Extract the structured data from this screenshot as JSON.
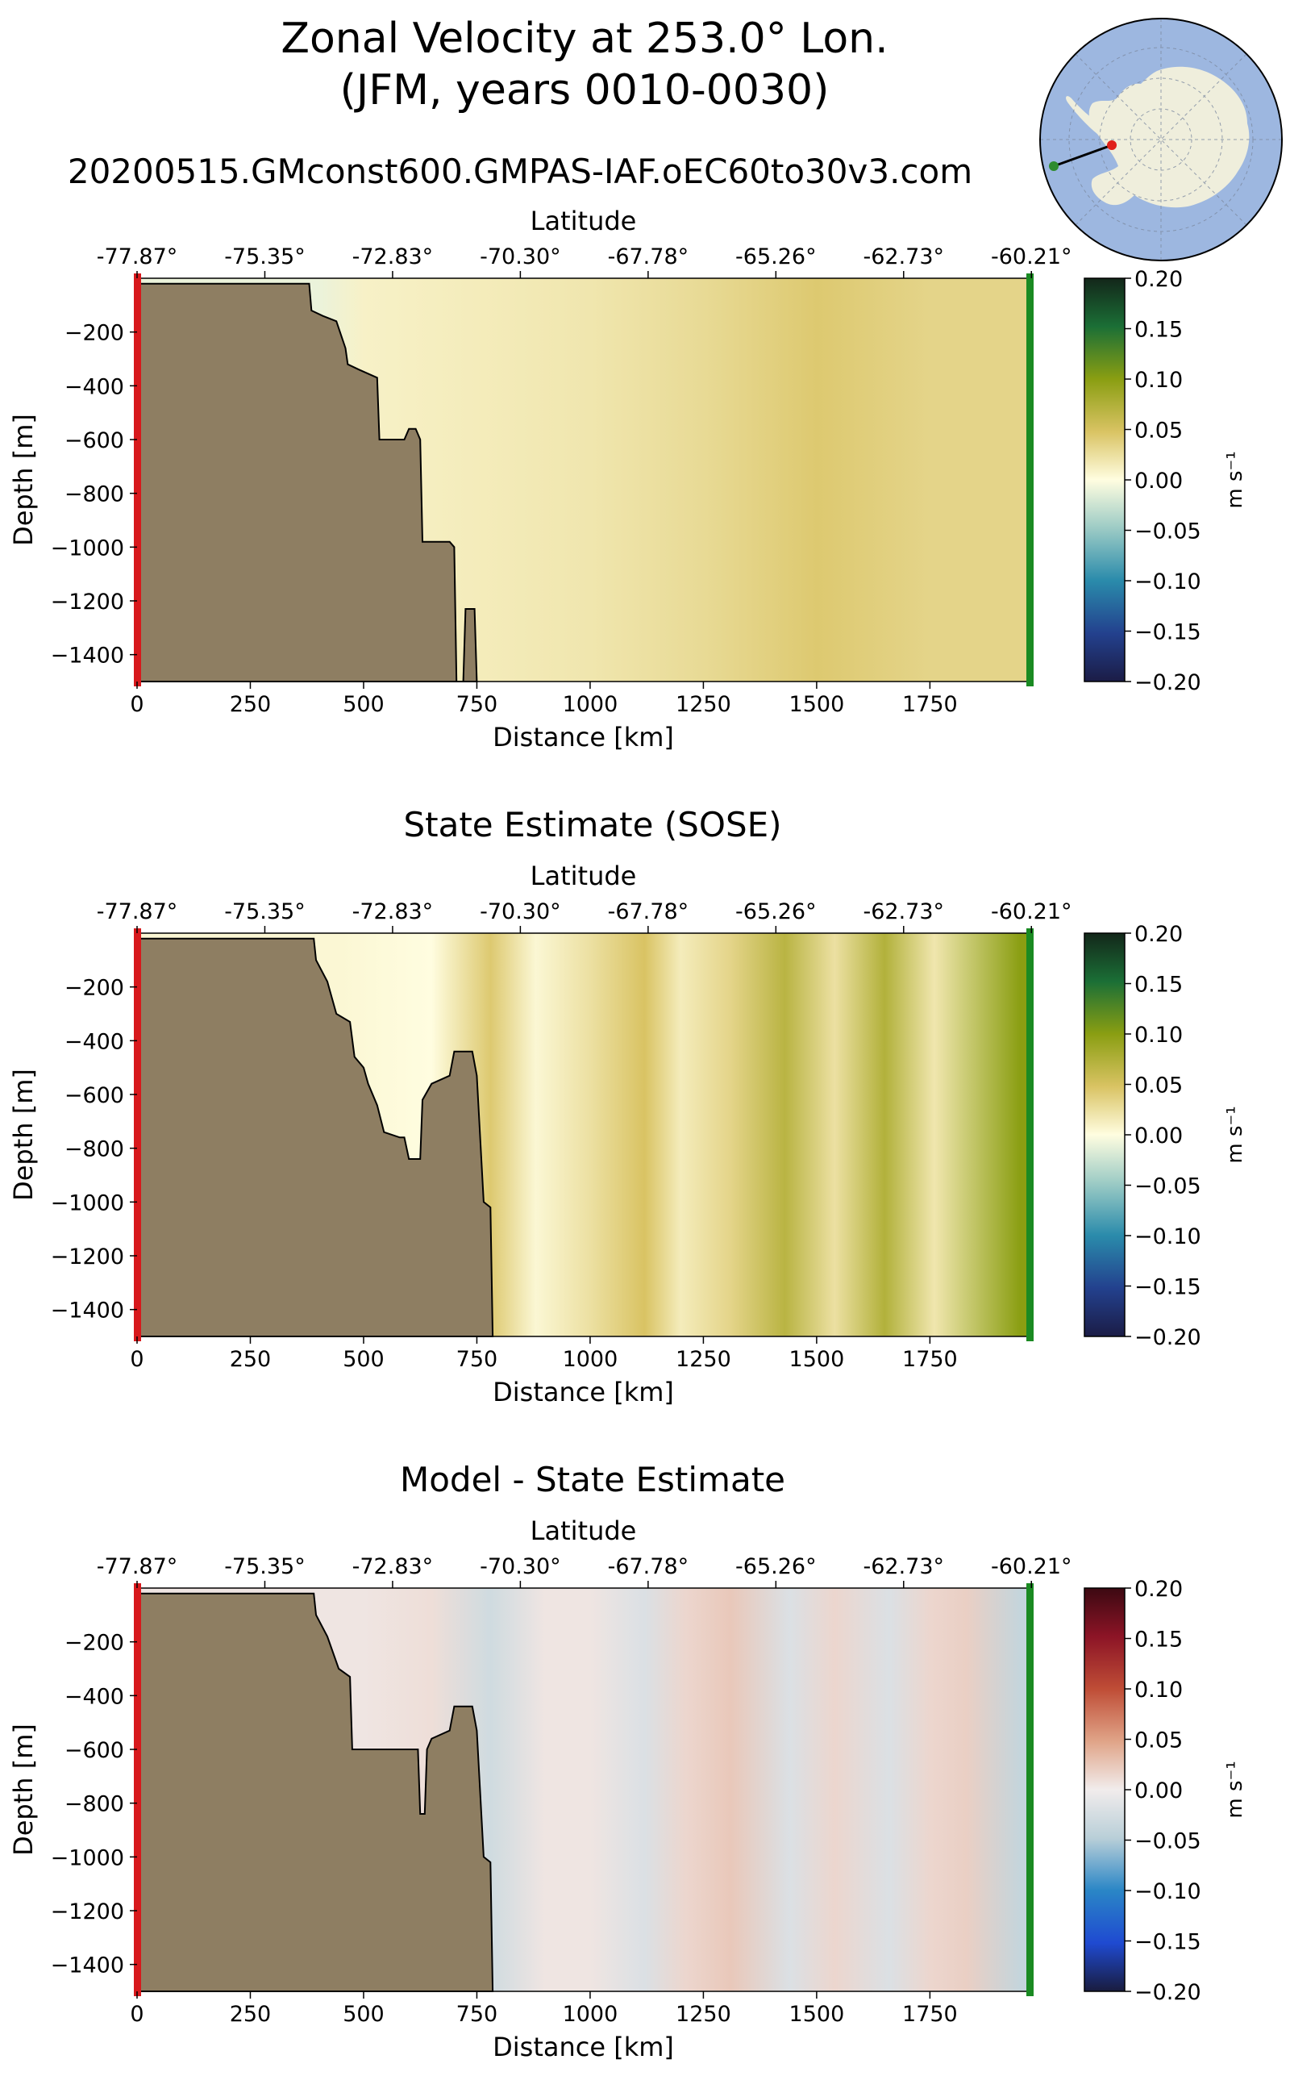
{
  "figure": {
    "title_line1": "Zonal Velocity at 253.0° Lon.",
    "title_line2": "(JFM, years 0010-0030)",
    "run_name": "20200515.GMconst600.GMPAS-IAF.oEC60to30v3.com"
  },
  "inset_map": {
    "description_name": "antarctica-polar-map",
    "ocean_color": "#9db7e0",
    "land_color": "#efeedc",
    "start_marker_color": "#2e8b2e",
    "end_marker_color": "#e0201a"
  },
  "chart_data": [
    {
      "type": "heatmap",
      "title": "",
      "xlabel": "Distance [km]",
      "ylabel": "Depth [m]",
      "top_xlabel": "Latitude",
      "xlim": [
        0,
        1970
      ],
      "ylim": [
        -1500,
        0
      ],
      "xticks": [
        0,
        250,
        500,
        750,
        1000,
        1250,
        1500,
        1750
      ],
      "xtick_labels": [
        "0",
        "250",
        "500",
        "750",
        "1000",
        "1250",
        "1500",
        "1750"
      ],
      "yticks": [
        -200,
        -400,
        -600,
        -800,
        -1000,
        -1200,
        -1400
      ],
      "ytick_labels": [
        "−200",
        "−400",
        "−600",
        "−800",
        "−1000",
        "−1200",
        "−1400"
      ],
      "lat_ticks_km": [
        0,
        282,
        564,
        846,
        1128,
        1410,
        1692,
        1974
      ],
      "lat_labels": [
        "-77.87°",
        "-75.35°",
        "-72.83°",
        "-70.30°",
        "-67.78°",
        "-65.26°",
        "-62.73°",
        "-60.21°"
      ],
      "colorbar": {
        "cmap": "speed",
        "ticks": [
          "0.20",
          "0.15",
          "0.10",
          "0.05",
          "0.00",
          "−0.05",
          "−0.10",
          "−0.15",
          "−0.20"
        ],
        "range": [
          -0.2,
          0.2
        ],
        "label": "m s⁻¹"
      },
      "bathymetry_km_depth": [
        [
          0,
          -20
        ],
        [
          380,
          -20
        ],
        [
          385,
          -120
        ],
        [
          410,
          -140
        ],
        [
          440,
          -160
        ],
        [
          460,
          -260
        ],
        [
          465,
          -320
        ],
        [
          490,
          -340
        ],
        [
          530,
          -370
        ],
        [
          535,
          -600
        ],
        [
          590,
          -600
        ],
        [
          600,
          -560
        ],
        [
          615,
          -560
        ],
        [
          625,
          -600
        ],
        [
          630,
          -980
        ],
        [
          690,
          -980
        ],
        [
          700,
          -1000
        ],
        [
          705,
          -1500
        ],
        [
          720,
          -1500
        ],
        [
          725,
          -1230
        ],
        [
          745,
          -1230
        ],
        [
          750,
          -1500
        ]
      ],
      "velocity_field": [
        {
          "x": 400,
          "u": -0.01
        },
        {
          "x": 500,
          "u": 0.01
        },
        {
          "x": 750,
          "u": 0.015
        },
        {
          "x": 1000,
          "u": 0.02
        },
        {
          "x": 1250,
          "u": 0.03
        },
        {
          "x": 1500,
          "u": 0.045
        },
        {
          "x": 1750,
          "u": 0.035
        },
        {
          "x": 1970,
          "u": 0.035
        }
      ]
    },
    {
      "type": "heatmap",
      "title": "State Estimate (SOSE)",
      "xlabel": "Distance [km]",
      "ylabel": "Depth [m]",
      "top_xlabel": "Latitude",
      "xlim": [
        0,
        1970
      ],
      "ylim": [
        -1500,
        0
      ],
      "xticks": [
        0,
        250,
        500,
        750,
        1000,
        1250,
        1500,
        1750
      ],
      "xtick_labels": [
        "0",
        "250",
        "500",
        "750",
        "1000",
        "1250",
        "1500",
        "1750"
      ],
      "yticks": [
        -200,
        -400,
        -600,
        -800,
        -1000,
        -1200,
        -1400
      ],
      "ytick_labels": [
        "−200",
        "−400",
        "−600",
        "−800",
        "−1000",
        "−1200",
        "−1400"
      ],
      "lat_ticks_km": [
        0,
        282,
        564,
        846,
        1128,
        1410,
        1692,
        1974
      ],
      "lat_labels": [
        "-77.87°",
        "-75.35°",
        "-72.83°",
        "-70.30°",
        "-67.78°",
        "-65.26°",
        "-62.73°",
        "-60.21°"
      ],
      "colorbar": {
        "cmap": "speed",
        "ticks": [
          "0.20",
          "0.15",
          "0.10",
          "0.05",
          "0.00",
          "−0.05",
          "−0.10",
          "−0.15",
          "−0.20"
        ],
        "range": [
          -0.2,
          0.2
        ],
        "label": "m s⁻¹"
      },
      "bathymetry_km_depth": [
        [
          0,
          -20
        ],
        [
          390,
          -20
        ],
        [
          395,
          -100
        ],
        [
          420,
          -180
        ],
        [
          440,
          -300
        ],
        [
          470,
          -330
        ],
        [
          480,
          -460
        ],
        [
          500,
          -500
        ],
        [
          510,
          -560
        ],
        [
          530,
          -640
        ],
        [
          545,
          -740
        ],
        [
          580,
          -760
        ],
        [
          590,
          -760
        ],
        [
          600,
          -840
        ],
        [
          625,
          -840
        ],
        [
          630,
          -620
        ],
        [
          650,
          -560
        ],
        [
          690,
          -530
        ],
        [
          700,
          -440
        ],
        [
          740,
          -440
        ],
        [
          750,
          -530
        ],
        [
          765,
          -1000
        ],
        [
          780,
          -1020
        ],
        [
          785,
          -1500
        ]
      ],
      "velocity_field": [
        {
          "x": 450,
          "u": 0.005
        },
        {
          "x": 650,
          "u": 0.0
        },
        {
          "x": 780,
          "u": 0.045
        },
        {
          "x": 880,
          "u": 0.005
        },
        {
          "x": 1000,
          "u": 0.025
        },
        {
          "x": 1120,
          "u": 0.05
        },
        {
          "x": 1200,
          "u": 0.015
        },
        {
          "x": 1310,
          "u": 0.035
        },
        {
          "x": 1430,
          "u": 0.07
        },
        {
          "x": 1540,
          "u": 0.025
        },
        {
          "x": 1650,
          "u": 0.075
        },
        {
          "x": 1760,
          "u": 0.02
        },
        {
          "x": 1950,
          "u": 0.1
        }
      ]
    },
    {
      "type": "heatmap",
      "title": "Model - State Estimate",
      "xlabel": "Distance [km]",
      "ylabel": "Depth [m]",
      "top_xlabel": "Latitude",
      "xlim": [
        0,
        1970
      ],
      "ylim": [
        -1500,
        0
      ],
      "xticks": [
        0,
        250,
        500,
        750,
        1000,
        1250,
        1500,
        1750
      ],
      "xtick_labels": [
        "0",
        "250",
        "500",
        "750",
        "1000",
        "1250",
        "1500",
        "1750"
      ],
      "yticks": [
        -200,
        -400,
        -600,
        -800,
        -1000,
        -1200,
        -1400
      ],
      "ytick_labels": [
        "−200",
        "−400",
        "−600",
        "−800",
        "−1000",
        "−1200",
        "−1400"
      ],
      "lat_ticks_km": [
        0,
        282,
        564,
        846,
        1128,
        1410,
        1692,
        1974
      ],
      "lat_labels": [
        "-77.87°",
        "-75.35°",
        "-72.83°",
        "-70.30°",
        "-67.78°",
        "-65.26°",
        "-62.73°",
        "-60.21°"
      ],
      "colorbar": {
        "cmap": "balance",
        "ticks": [
          "0.20",
          "0.15",
          "0.10",
          "0.05",
          "0.00",
          "−0.05",
          "−0.10",
          "−0.15",
          "−0.20"
        ],
        "range": [
          -0.2,
          0.2
        ],
        "label": "m s⁻¹"
      },
      "bathymetry_km_depth": [
        [
          0,
          -20
        ],
        [
          390,
          -20
        ],
        [
          395,
          -100
        ],
        [
          420,
          -180
        ],
        [
          445,
          -300
        ],
        [
          470,
          -330
        ],
        [
          475,
          -600
        ],
        [
          620,
          -600
        ],
        [
          625,
          -840
        ],
        [
          635,
          -840
        ],
        [
          640,
          -600
        ],
        [
          650,
          -560
        ],
        [
          690,
          -530
        ],
        [
          700,
          -440
        ],
        [
          740,
          -440
        ],
        [
          750,
          -530
        ],
        [
          765,
          -1000
        ],
        [
          780,
          -1020
        ],
        [
          785,
          -1500
        ]
      ],
      "velocity_field": [
        {
          "x": 500,
          "u": 0.005
        },
        {
          "x": 650,
          "u": 0.01
        },
        {
          "x": 780,
          "u": -0.03
        },
        {
          "x": 900,
          "u": 0.005
        },
        {
          "x": 1000,
          "u": 0.005
        },
        {
          "x": 1120,
          "u": -0.02
        },
        {
          "x": 1210,
          "u": 0.015
        },
        {
          "x": 1310,
          "u": 0.025
        },
        {
          "x": 1440,
          "u": -0.02
        },
        {
          "x": 1540,
          "u": 0.015
        },
        {
          "x": 1660,
          "u": -0.02
        },
        {
          "x": 1750,
          "u": 0.015
        },
        {
          "x": 1830,
          "u": 0.02
        },
        {
          "x": 1950,
          "u": -0.04
        }
      ]
    }
  ]
}
